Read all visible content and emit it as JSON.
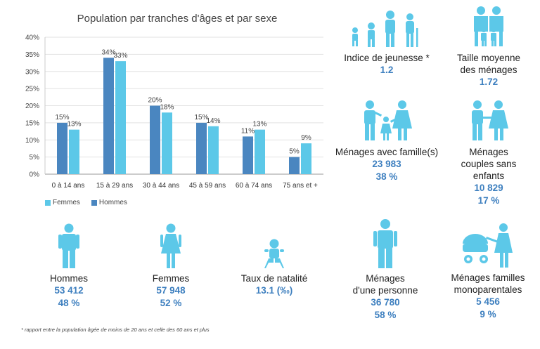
{
  "chart_data": {
    "type": "bar",
    "title": "Population par tranches d'âges et par sexe",
    "categories": [
      "0 à 14 ans",
      "15 à 29 ans",
      "30 à 44 ans",
      "45 à 59 ans",
      "60 à 74 ans",
      "75 ans et +"
    ],
    "series": [
      {
        "name": "Hommes",
        "color": "#4a86c0",
        "values": [
          15,
          34,
          20,
          15,
          11,
          5
        ],
        "labels": [
          "15%",
          "34%",
          "20%",
          "15%",
          "11%",
          "5%"
        ]
      },
      {
        "name": "Femmes",
        "color": "#5cc8e8",
        "values": [
          13,
          33,
          18,
          14,
          13,
          9
        ],
        "labels": [
          "13%",
          "33%",
          "18%",
          "14%",
          "13%",
          "9%"
        ]
      }
    ],
    "y_ticks": [
      "0%",
      "5%",
      "10%",
      "15%",
      "20%",
      "25%",
      "30%",
      "35%",
      "40%"
    ],
    "ylim": [
      0,
      40
    ],
    "legend": {
      "items": [
        "Femmes",
        "Hommes"
      ],
      "placement": "bottom-left"
    }
  },
  "stats": {
    "jeunesse": {
      "label": "Indice de jeunesse *",
      "value": "1.2"
    },
    "taille": {
      "label1": "Taille moyenne",
      "label2": "des ménages",
      "value": "1.72"
    },
    "famille": {
      "label": "Ménages avec famille(s)",
      "value1": "23 983",
      "value2": "38 %"
    },
    "couples": {
      "label1": "Ménages",
      "label2": "couples sans",
      "label3": "enfants",
      "value1": "10 829",
      "value2": "17 %"
    },
    "hommes": {
      "label": "Hommes",
      "value1": "53 412",
      "value2": "48 %"
    },
    "femmes": {
      "label": "Femmes",
      "value1": "57 948",
      "value2": "52 %"
    },
    "natalite": {
      "label": "Taux de natalité",
      "value": "13.1 (‰)"
    },
    "personne": {
      "label1": "Ménages",
      "label2": "d'une personne",
      "value1": "36 780",
      "value2": "58 %"
    },
    "mono": {
      "label1": "Ménages familles",
      "label2": "monoparentales",
      "value1": "5 456",
      "value2": "9 %"
    }
  },
  "icon_color": "#5cc8e8",
  "footnote": "* rapport entre la population âgée de moins de 20 ans et celle des 60 ans et plus"
}
